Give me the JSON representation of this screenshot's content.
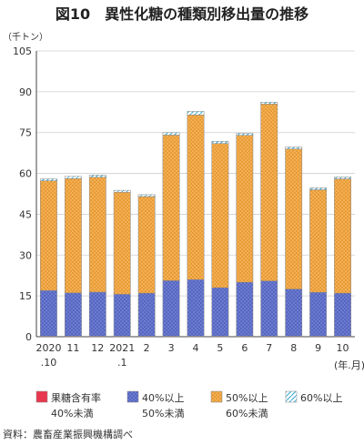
{
  "chart_data": {
    "type": "bar",
    "stacked": true,
    "title": "図10　異性化糖の種類別移出量の推移",
    "unit_label": "（千トン）",
    "x_unit_label": "(年.月)",
    "categories": [
      [
        "2020",
        ".10"
      ],
      [
        "11"
      ],
      [
        "12"
      ],
      [
        "2021",
        ".1"
      ],
      [
        "2"
      ],
      [
        "3"
      ],
      [
        "4"
      ],
      [
        "5"
      ],
      [
        "6"
      ],
      [
        "7"
      ],
      [
        "8"
      ],
      [
        "9"
      ],
      [
        "10"
      ]
    ],
    "ylim": [
      0,
      105
    ],
    "yticks": [
      0,
      15,
      30,
      45,
      60,
      75,
      90,
      105
    ],
    "grid": true,
    "legend_position": "bottom",
    "series": [
      {
        "name_lines": [
          "果糖含有率",
          "40%未満"
        ],
        "color": "#e8384f",
        "pattern": "solid",
        "values": [
          0.2,
          0.2,
          0.2,
          0.2,
          0.2,
          0.2,
          0.2,
          0.2,
          0.2,
          0.2,
          0.2,
          0.2,
          0.2
        ]
      },
      {
        "name_lines": [
          "40%以上",
          "50%未満"
        ],
        "color": "#5c6cc7",
        "pattern": "dots",
        "values": [
          16.8,
          15.9,
          16.2,
          15.4,
          15.8,
          20.4,
          20.8,
          17.8,
          19.8,
          20.3,
          17.3,
          16.1,
          15.8
        ]
      },
      {
        "name_lines": [
          "50%以上",
          "60%未満"
        ],
        "color": "#f2a844",
        "pattern": "cross",
        "values": [
          40.3,
          42.0,
          42.2,
          37.5,
          35.5,
          53.5,
          60.5,
          53.0,
          54.0,
          65.0,
          51.5,
          37.7,
          42.0
        ]
      },
      {
        "name_lines": [
          "60%以上"
        ],
        "color": "#8fd3e8",
        "pattern": "diag",
        "values": [
          0.7,
          0.8,
          0.8,
          0.7,
          0.7,
          0.9,
          1.3,
          0.8,
          0.7,
          0.7,
          0.7,
          0.7,
          0.7
        ]
      }
    ],
    "source": "資料：農畜産業振興機構調べ"
  }
}
